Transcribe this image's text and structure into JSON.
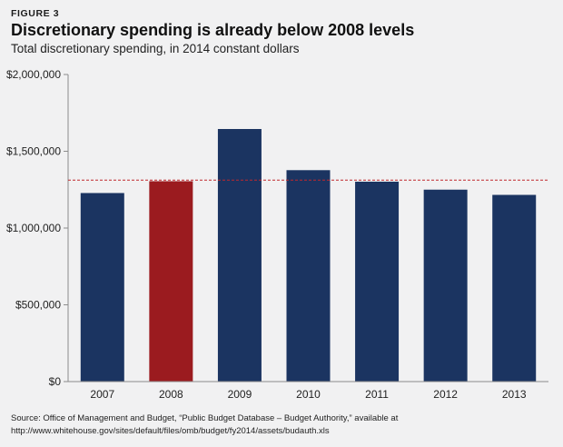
{
  "figure_label": "FIGURE 3",
  "source_note": "Source: Office of Management and Budget, “Public Budget Database – Budget Authority,” available at http://www.whitehouse.gov/sites/default/files/omb/budget/fy2014/assets/budauth.xls",
  "chart_data": {
    "type": "bar",
    "title": "Discretionary spending is already below 2008 levels",
    "subtitle": "Total discretionary spending, in 2014 constant dollars",
    "xlabel": "",
    "ylabel": "",
    "categories": [
      "2007",
      "2008",
      "2009",
      "2010",
      "2011",
      "2012",
      "2013"
    ],
    "values": [
      1228000,
      1305000,
      1645000,
      1377000,
      1302000,
      1250000,
      1216000
    ],
    "highlight": "2008",
    "reference_line": 1312000,
    "ylim": [
      0,
      2000000
    ],
    "yticks": [
      0,
      500000,
      1000000,
      1500000,
      2000000
    ],
    "ytick_labels": [
      "$0",
      "$500,000",
      "$1,000,000",
      "$1,500,000",
      "$2,000,000"
    ],
    "grid": false,
    "colors": {
      "bar": "#1b3461",
      "highlight": "#9b1b1f",
      "reference_line": "#c0282d",
      "axis": "#8c8c8c"
    }
  }
}
